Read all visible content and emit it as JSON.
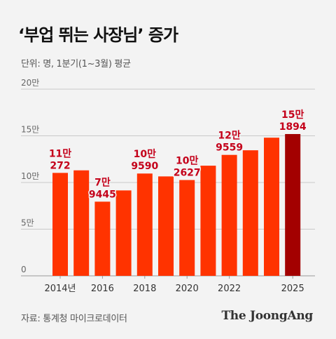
{
  "title": "‘부업 뛰는 사장님’ 증가",
  "subtitle": "단위: 명, 1분기(1~3월) 평균",
  "source": "자료: 통계청 마이크로데이터",
  "brand": "The JoongAng",
  "colors": {
    "bar": "#ff3300",
    "highlight": "#a30000",
    "label": "#c4001a",
    "grid": "#c8c8c8"
  },
  "chart_data": {
    "type": "bar",
    "y_tick_labels": [
      "0",
      "5만",
      "10만",
      "15만",
      "20만"
    ],
    "y_ticks": [
      0,
      50000,
      100000,
      150000,
      200000
    ],
    "ylim": [
      0,
      200000
    ],
    "categories": [
      "2014",
      "2015",
      "2016",
      "2017",
      "2018",
      "2019",
      "2020",
      "2021",
      "2022",
      "2023",
      "2024",
      "2025"
    ],
    "x_tick_labels": [
      "2014년",
      "",
      "2016",
      "",
      "2018",
      "",
      "2020",
      "",
      "2022",
      "",
      "",
      "2025"
    ],
    "values": [
      110272,
      113000,
      79445,
      91500,
      109590,
      106500,
      102627,
      118000,
      129559,
      134500,
      148000,
      151894
    ],
    "data_labels": [
      [
        "11만",
        "272"
      ],
      null,
      [
        "7만",
        "9445"
      ],
      null,
      [
        "10만",
        "9590"
      ],
      null,
      [
        "10만",
        "2627"
      ],
      null,
      [
        "12만",
        "9559"
      ],
      null,
      null,
      [
        "15만",
        "1894"
      ]
    ],
    "highlight_index": 11
  }
}
